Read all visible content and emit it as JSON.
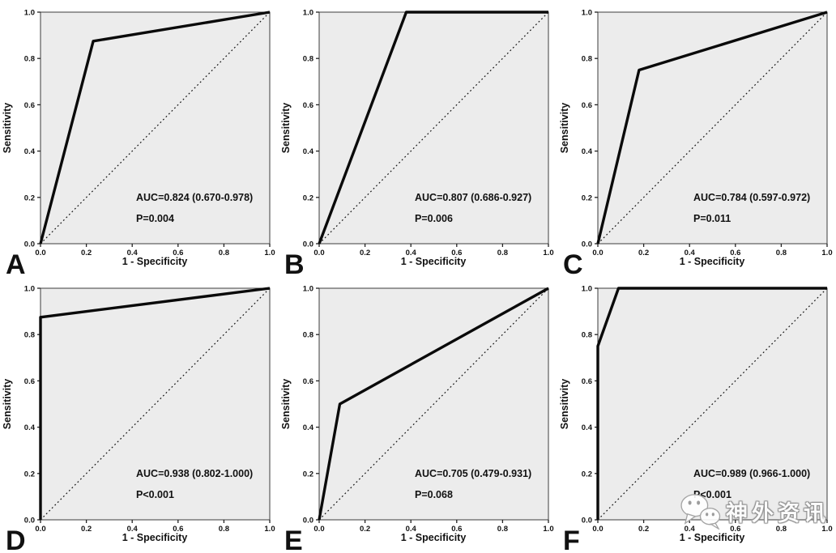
{
  "figure": {
    "type": "roc-curve-multipanel",
    "watermark": {
      "icon": "wechat-icon",
      "text": "神外资讯"
    },
    "colors": {
      "background": "#ffffff",
      "plot_bg": "#ececec",
      "curve": "#0a0a0a",
      "reference": "#111111",
      "text": "#111111"
    }
  },
  "chart_data": [
    {
      "type": "line",
      "panel_label": "A",
      "xlabel": "1 - Specificity",
      "ylabel": "Sensitivity",
      "xlim": [
        0,
        1
      ],
      "ylim": [
        0,
        1
      ],
      "grid": false,
      "legend": false,
      "xticks": [
        "0.0",
        "0.2",
        "0.4",
        "0.6",
        "0.8",
        "1.0"
      ],
      "yticks": [
        "0.0",
        "0.2",
        "0.4",
        "0.6",
        "0.8",
        "1.0"
      ],
      "roc_curve": [
        [
          0,
          0
        ],
        [
          0.23,
          0.875
        ],
        [
          1,
          1
        ]
      ],
      "reference_line": [
        [
          0,
          0
        ],
        [
          1,
          1
        ]
      ],
      "auc": 0.824,
      "auc_ci": "0.670-0.978",
      "p_value": "0.004",
      "auc_label": "AUC=0.824 (0.670-0.978)",
      "p_label": "P=0.004"
    },
    {
      "type": "line",
      "panel_label": "B",
      "xlabel": "1 - Specificity",
      "ylabel": "Sensitivity",
      "xlim": [
        0,
        1
      ],
      "ylim": [
        0,
        1
      ],
      "grid": false,
      "legend": false,
      "xticks": [
        "0.0",
        "0.2",
        "0.4",
        "0.6",
        "0.8",
        "1.0"
      ],
      "yticks": [
        "0.0",
        "0.2",
        "0.4",
        "0.6",
        "0.8",
        "1.0"
      ],
      "roc_curve": [
        [
          0,
          0
        ],
        [
          0.38,
          1
        ],
        [
          1,
          1
        ]
      ],
      "reference_line": [
        [
          0,
          0
        ],
        [
          1,
          1
        ]
      ],
      "auc": 0.807,
      "auc_ci": "0.686-0.927",
      "p_value": "0.006",
      "auc_label": "AUC=0.807 (0.686-0.927)",
      "p_label": "P=0.006"
    },
    {
      "type": "line",
      "panel_label": "C",
      "xlabel": "1 - Specificity",
      "ylabel": "Sensitivity",
      "xlim": [
        0,
        1
      ],
      "ylim": [
        0,
        1
      ],
      "grid": false,
      "legend": false,
      "xticks": [
        "0.0",
        "0.2",
        "0.4",
        "0.6",
        "0.8",
        "1.0"
      ],
      "yticks": [
        "0.0",
        "0.2",
        "0.4",
        "0.6",
        "0.8",
        "1.0"
      ],
      "roc_curve": [
        [
          0,
          0
        ],
        [
          0.18,
          0.75
        ],
        [
          1,
          1
        ]
      ],
      "reference_line": [
        [
          0,
          0
        ],
        [
          1,
          1
        ]
      ],
      "auc": 0.784,
      "auc_ci": "0.597-0.972",
      "p_value": "0.011",
      "auc_label": "AUC=0.784 (0.597-0.972)",
      "p_label": "P=0.011"
    },
    {
      "type": "line",
      "panel_label": "D",
      "xlabel": "1 - Specificity",
      "ylabel": "Sensitivity",
      "xlim": [
        0,
        1
      ],
      "ylim": [
        0,
        1
      ],
      "grid": false,
      "legend": false,
      "xticks": [
        "0.0",
        "0.2",
        "0.4",
        "0.6",
        "0.8",
        "1.0"
      ],
      "yticks": [
        "0.0",
        "0.2",
        "0.4",
        "0.6",
        "0.8",
        "1.0"
      ],
      "roc_curve": [
        [
          0,
          0
        ],
        [
          0,
          0.875
        ],
        [
          1,
          1
        ]
      ],
      "reference_line": [
        [
          0,
          0
        ],
        [
          1,
          1
        ]
      ],
      "auc": 0.938,
      "auc_ci": "0.802-1.000",
      "p_value": "<0.001",
      "auc_label": "AUC=0.938 (0.802-1.000)",
      "p_label": "P<0.001"
    },
    {
      "type": "line",
      "panel_label": "E",
      "xlabel": "1 - Specificity",
      "ylabel": "Sensitivity",
      "xlim": [
        0,
        1
      ],
      "ylim": [
        0,
        1
      ],
      "grid": false,
      "legend": false,
      "xticks": [
        "0.0",
        "0.2",
        "0.4",
        "0.6",
        "0.8",
        "1.0"
      ],
      "yticks": [
        "0.0",
        "0.2",
        "0.4",
        "0.6",
        "0.8",
        "1.0"
      ],
      "roc_curve": [
        [
          0,
          0
        ],
        [
          0.09,
          0.5
        ],
        [
          1,
          1
        ]
      ],
      "reference_line": [
        [
          0,
          0
        ],
        [
          1,
          1
        ]
      ],
      "auc": 0.705,
      "auc_ci": "0.479-0.931",
      "p_value": "0.068",
      "auc_label": "AUC=0.705 (0.479-0.931)",
      "p_label": "P=0.068"
    },
    {
      "type": "line",
      "panel_label": "F",
      "xlabel": "1 - Specificity",
      "ylabel": "Sensitivity",
      "xlim": [
        0,
        1
      ],
      "ylim": [
        0,
        1
      ],
      "grid": false,
      "legend": false,
      "xticks": [
        "0.0",
        "0.2",
        "0.4",
        "0.6",
        "0.8",
        "1.0"
      ],
      "yticks": [
        "0.0",
        "0.2",
        "0.4",
        "0.6",
        "0.8",
        "1.0"
      ],
      "roc_curve": [
        [
          0,
          0
        ],
        [
          0,
          0.75
        ],
        [
          0.09,
          1
        ],
        [
          1,
          1
        ]
      ],
      "reference_line": [
        [
          0,
          0
        ],
        [
          1,
          1
        ]
      ],
      "auc": 0.989,
      "auc_ci": "0.966-1.000",
      "p_value": "<0.001",
      "auc_label": "AUC=0.989 (0.966-1.000)",
      "p_label": "P<0.001"
    }
  ]
}
